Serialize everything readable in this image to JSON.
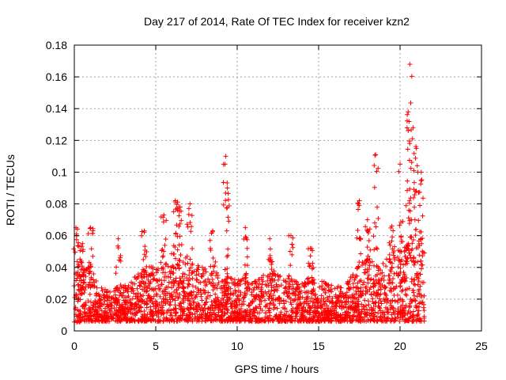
{
  "chart_data": {
    "type": "scatter",
    "title": "Day 217 of 2014, Rate Of TEC Index for receiver kzn2",
    "xlabel": "GPS time / hours",
    "ylabel": "ROTI / TECUs",
    "xlim": [
      0,
      25
    ],
    "ylim": [
      0,
      0.18
    ],
    "x_ticks": [
      0,
      5,
      10,
      15,
      20,
      25
    ],
    "x_tick_labels": [
      "0",
      "5",
      "10",
      "15",
      "20",
      "25"
    ],
    "y_ticks": [
      0,
      0.02,
      0.04,
      0.06,
      0.08,
      0.1,
      0.12,
      0.14,
      0.16,
      0.18
    ],
    "y_tick_labels": [
      "0",
      "0.02",
      "0.04",
      "0.06",
      "0.08",
      "0.1",
      "0.12",
      "0.14",
      "0.16",
      "0.18"
    ],
    "grid": true,
    "marker": "+",
    "series_color": "#ff0000",
    "series": [
      {
        "name": "ROTI",
        "baseline_envelope": {
          "x": [
            0,
            0.5,
            1,
            1.5,
            2,
            2.5,
            3,
            3.5,
            4,
            4.5,
            5,
            5.5,
            6,
            6.5,
            7,
            7.5,
            8,
            8.5,
            9,
            9.5,
            10,
            10.5,
            11,
            11.5,
            12,
            12.5,
            13,
            13.5,
            14,
            14.5,
            15,
            15.5,
            16,
            16.5,
            17,
            17.5,
            18,
            18.5,
            19,
            19.5,
            20,
            20.5,
            21,
            21.5
          ],
          "y_min": [
            0.005,
            0.006,
            0.006,
            0.006,
            0.006,
            0.006,
            0.006,
            0.006,
            0.006,
            0.006,
            0.006,
            0.006,
            0.006,
            0.006,
            0.006,
            0.006,
            0.006,
            0.006,
            0.006,
            0.006,
            0.006,
            0.006,
            0.006,
            0.006,
            0.006,
            0.006,
            0.006,
            0.006,
            0.006,
            0.006,
            0.006,
            0.006,
            0.006,
            0.006,
            0.006,
            0.006,
            0.006,
            0.006,
            0.006,
            0.006,
            0.006,
            0.006,
            0.006,
            0.006
          ],
          "y_max": [
            0.045,
            0.04,
            0.042,
            0.028,
            0.026,
            0.028,
            0.028,
            0.032,
            0.038,
            0.04,
            0.042,
            0.046,
            0.05,
            0.046,
            0.048,
            0.042,
            0.04,
            0.038,
            0.036,
            0.034,
            0.032,
            0.034,
            0.032,
            0.034,
            0.04,
            0.036,
            0.034,
            0.032,
            0.032,
            0.034,
            0.034,
            0.03,
            0.028,
            0.03,
            0.036,
            0.042,
            0.046,
            0.042,
            0.044,
            0.048,
            0.05,
            0.056,
            0.06,
            0.058
          ]
        },
        "peaks": [
          {
            "x": 0.1,
            "y": 0.065
          },
          {
            "x": 0.5,
            "y": 0.055
          },
          {
            "x": 1.0,
            "y": 0.065
          },
          {
            "x": 2.7,
            "y": 0.058
          },
          {
            "x": 4.3,
            "y": 0.063
          },
          {
            "x": 5.5,
            "y": 0.073
          },
          {
            "x": 6.2,
            "y": 0.082
          },
          {
            "x": 6.5,
            "y": 0.078
          },
          {
            "x": 7.1,
            "y": 0.08
          },
          {
            "x": 8.5,
            "y": 0.063
          },
          {
            "x": 9.3,
            "y": 0.11
          },
          {
            "x": 9.4,
            "y": 0.09
          },
          {
            "x": 10.5,
            "y": 0.065
          },
          {
            "x": 12.0,
            "y": 0.058
          },
          {
            "x": 13.3,
            "y": 0.06
          },
          {
            "x": 14.5,
            "y": 0.052
          },
          {
            "x": 17.5,
            "y": 0.082
          },
          {
            "x": 18.0,
            "y": 0.07
          },
          {
            "x": 18.5,
            "y": 0.111
          },
          {
            "x": 19.5,
            "y": 0.066
          },
          {
            "x": 20.0,
            "y": 0.105
          },
          {
            "x": 20.5,
            "y": 0.138
          },
          {
            "x": 20.6,
            "y": 0.168
          },
          {
            "x": 20.8,
            "y": 0.128
          },
          {
            "x": 21.0,
            "y": 0.115
          },
          {
            "x": 21.3,
            "y": 0.1
          }
        ]
      }
    ]
  }
}
